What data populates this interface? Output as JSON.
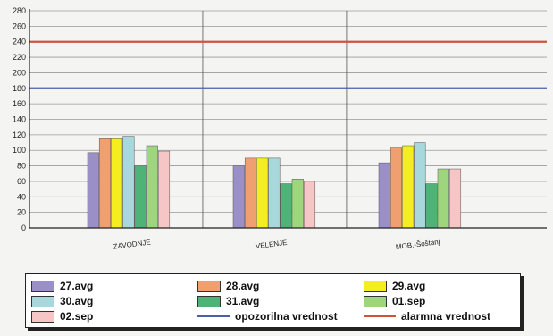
{
  "chart_data": {
    "type": "bar",
    "title": "",
    "xlabel": "",
    "ylabel": "",
    "ylim": [
      0,
      280
    ],
    "y_ticks": [
      "0",
      "20",
      "40",
      "60",
      "80",
      "100",
      "120",
      "140",
      "160",
      "180",
      "200",
      "220",
      "240",
      "260",
      "280"
    ],
    "categories": [
      "ZAVODNJE",
      "VELENJE",
      "MOB.-Šoštanj"
    ],
    "series": [
      {
        "name": "27.avg",
        "color": "#9b8fc8",
        "values": [
          97,
          80,
          84
        ]
      },
      {
        "name": "28.avg",
        "color": "#f0a070",
        "values": [
          116,
          90,
          103
        ]
      },
      {
        "name": "29.avg",
        "color": "#f4ee20",
        "values": [
          116,
          90,
          106
        ]
      },
      {
        "name": "30.avg",
        "color": "#a8d8dc",
        "values": [
          118,
          90,
          110
        ]
      },
      {
        "name": "31.avg",
        "color": "#4fb277",
        "values": [
          80,
          57,
          57
        ]
      },
      {
        "name": "01.sep",
        "color": "#9ed67e",
        "values": [
          106,
          63,
          76
        ]
      },
      {
        "name": "02.sep",
        "color": "#f6c6c6",
        "values": [
          99,
          60,
          76
        ]
      }
    ],
    "reference_lines": [
      {
        "name": "opozorilna vrednost",
        "value": 180,
        "color": "#4b5fa8"
      },
      {
        "name": "alarmna vrednost",
        "value": 240,
        "color": "#d0533a"
      }
    ],
    "grid": true,
    "legend_placement": "bottom"
  }
}
